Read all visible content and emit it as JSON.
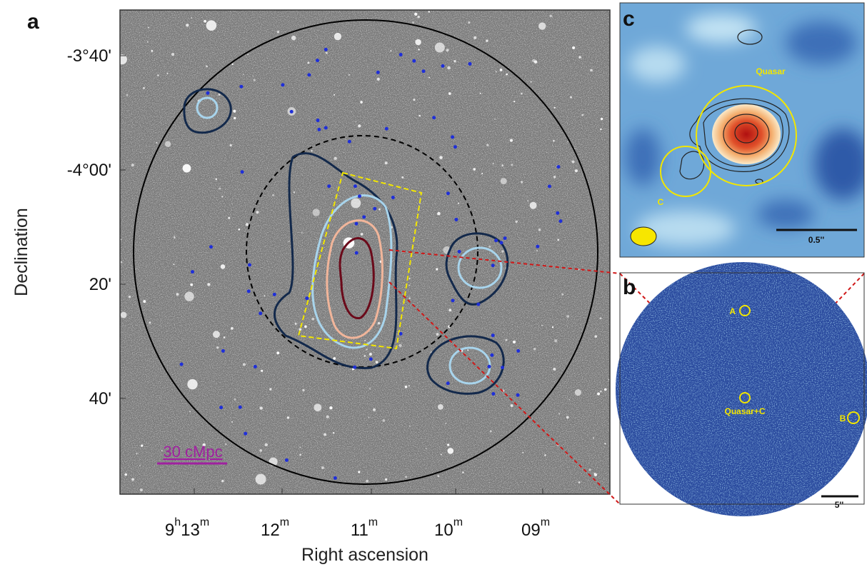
{
  "panels": {
    "a": {
      "letter": "a",
      "y_axis": {
        "title": "Declination",
        "ticks": [
          "-3°40'",
          "-4°00'",
          "20'",
          "40'"
        ]
      },
      "x_axis": {
        "title": "Right ascension",
        "ticks": [
          [
            [
              "9",
              "h"
            ],
            [
              "13",
              "m"
            ]
          ],
          [
            [
              "12",
              "m"
            ]
          ],
          [
            [
              "11",
              "m"
            ]
          ],
          [
            [
              "10",
              "m"
            ]
          ],
          [
            [
              "09",
              "m"
            ]
          ]
        ]
      },
      "scale_bar": "30 cMpc"
    },
    "b": {
      "letter": "b",
      "labels": [
        "A",
        "Quasar+C",
        "B"
      ],
      "scale_bar": "5''"
    },
    "c": {
      "letter": "c",
      "labels": [
        "Quasar",
        "C"
      ],
      "scale_bar": "0.5''"
    }
  }
}
